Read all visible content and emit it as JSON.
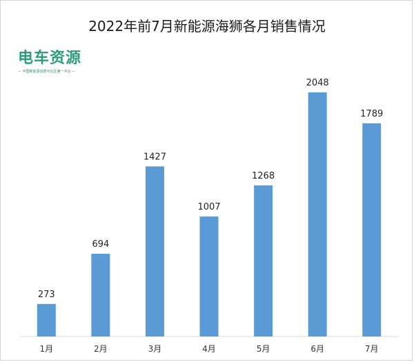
{
  "logo": {
    "text": "电车资源",
    "subtitle": "— 中国新能源消费与社区第一平台 —"
  },
  "chart_data": {
    "type": "bar",
    "title": "2022年前7月新能源海狮各月销售情况",
    "categories": [
      "1月",
      "2月",
      "3月",
      "4月",
      "5月",
      "6月",
      "7月"
    ],
    "values": [
      273,
      694,
      1427,
      1007,
      1268,
      2048,
      1789
    ],
    "ylim": [
      0,
      2200
    ],
    "grid": false,
    "legend": "none",
    "bar_color": "#5b9bd5",
    "axis_color": "#d9d9d9"
  }
}
